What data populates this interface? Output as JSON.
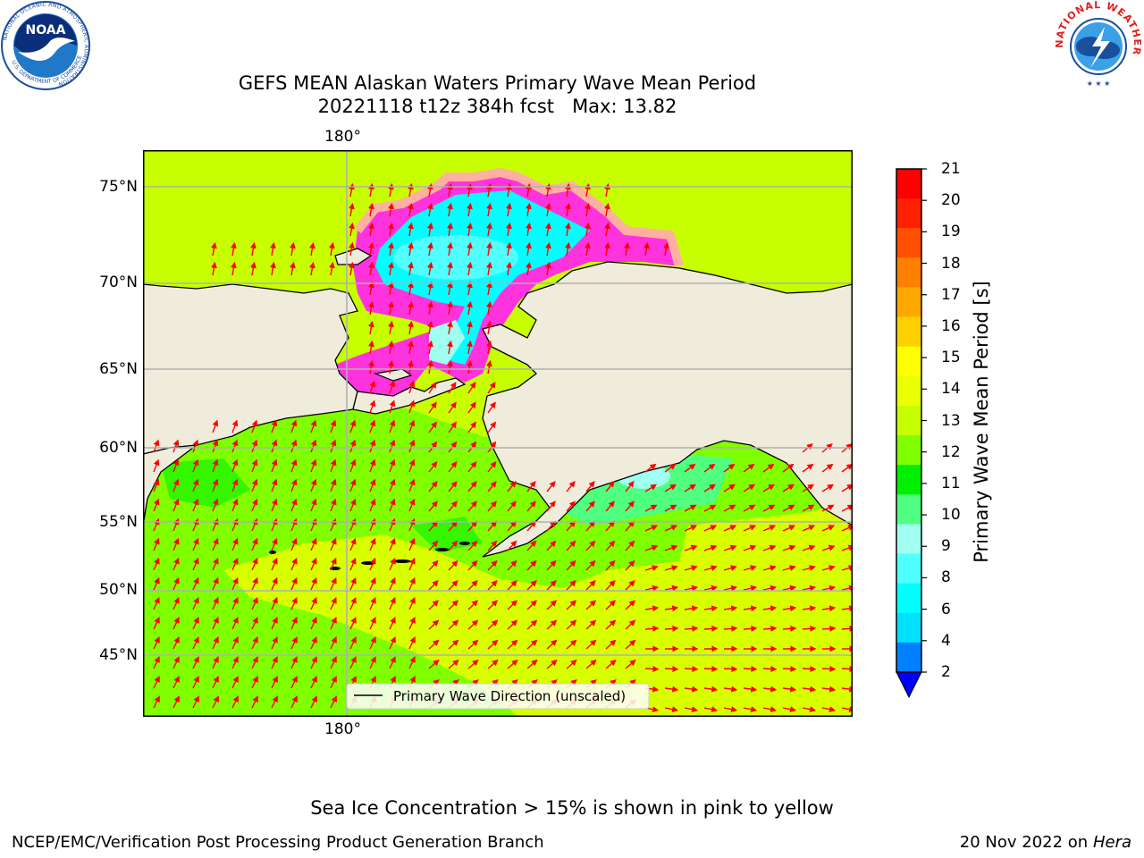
{
  "title": {
    "line1": "GEFS MEAN Alaskan Waters Primary Wave Mean Period",
    "line2": "20221118 t12z 384h fcst   Max: 13.82"
  },
  "map": {
    "lon_labels": [
      "180°",
      "180°"
    ],
    "lat_labels": [
      "75°N",
      "70°N",
      "65°N",
      "60°N",
      "55°N",
      "50°N",
      "45°N"
    ],
    "legend_label": "Primary Wave Direction (unscaled)",
    "land_color": "#efecdc",
    "arrow_color": "#ff0000"
  },
  "colorbar": {
    "label": "Primary Wave Mean Period [s]",
    "ticks": [
      "21",
      "20",
      "19",
      "18",
      "17",
      "16",
      "15",
      "14",
      "13",
      "12",
      "11",
      "10",
      "9",
      "8",
      "6",
      "4",
      "2"
    ],
    "colors_top_to_bottom": [
      "#ff0000",
      "#ff2000",
      "#ff5000",
      "#ff8000",
      "#ffa800",
      "#ffd000",
      "#ffff00",
      "#eaff00",
      "#c8ff00",
      "#80ff00",
      "#00f000",
      "#50ff80",
      "#a0fff0",
      "#50ffff",
      "#00ffff",
      "#00e0ff",
      "#0080ff"
    ],
    "extend_color": "#0000ff"
  },
  "logos": {
    "noaa_text": "NOAA",
    "noaa_ring": "NATIONAL OCEANIC AND ATMOSPHERIC ADMINISTRATION",
    "noaa_ring_bottom": "U.S. DEPARTMENT OF COMMERCE",
    "nws_ring": "NATIONAL WEATHER SERVICE"
  },
  "footnote": "Sea Ice Concentration > 15% is shown in pink to yellow",
  "credit_left": "NCEP/EMC/Verification Post Processing Product Generation Branch",
  "credit_right": {
    "date": "20 Nov 2022 on",
    "host": "Hera"
  }
}
